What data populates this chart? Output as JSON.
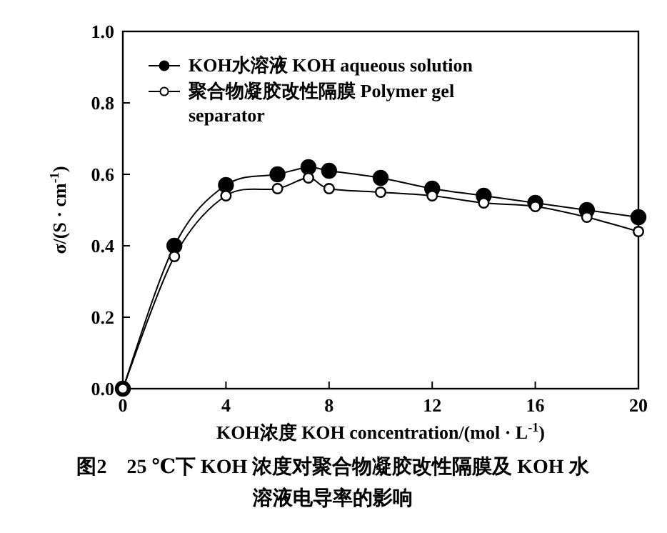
{
  "chart_data": {
    "type": "line",
    "title": "图2　25 ℃下 KOH 浓度对聚合物凝胶改性隔膜及 KOH 水溶液电导率的影响",
    "xlabel": "KOH浓度 KOH concentration/(mol · L$^{-1}$)",
    "ylabel": "σ/(S · cm$^{-1}$)",
    "xlim": [
      0,
      20
    ],
    "ylim": [
      0,
      1.0
    ],
    "xticks": [
      0,
      4,
      8,
      12,
      16,
      20
    ],
    "yticks": [
      {
        "value": 0,
        "label": "0.0"
      },
      {
        "value": 0.2,
        "label": "0.2"
      },
      {
        "value": 0.4,
        "label": "0.4"
      },
      {
        "value": 0.6,
        "label": "0.6"
      },
      {
        "value": 0.8,
        "label": "0.8"
      },
      {
        "value": 1.0,
        "label": "1.0"
      }
    ],
    "marker": "circle",
    "legend": "top left",
    "grid": false,
    "x": [
      0,
      2,
      4,
      6,
      7.2,
      8,
      10,
      12,
      14,
      16,
      18,
      20
    ],
    "series": [
      {
        "name": "KOH水溶液 KOH aqueous solution",
        "color": "#000000",
        "values": [
          0,
          0.4,
          0.57,
          0.6,
          0.62,
          0.61,
          0.59,
          0.56,
          0.54,
          0.52,
          0.5,
          0.48
        ]
      },
      {
        "name": "聚合物凝胶改性隔膜 Polymer gel separator",
        "color": "#000000",
        "values": [
          0,
          0.37,
          0.54,
          0.56,
          0.59,
          0.56,
          0.55,
          0.54,
          0.52,
          0.51,
          0.48,
          0.44
        ]
      }
    ]
  }
}
